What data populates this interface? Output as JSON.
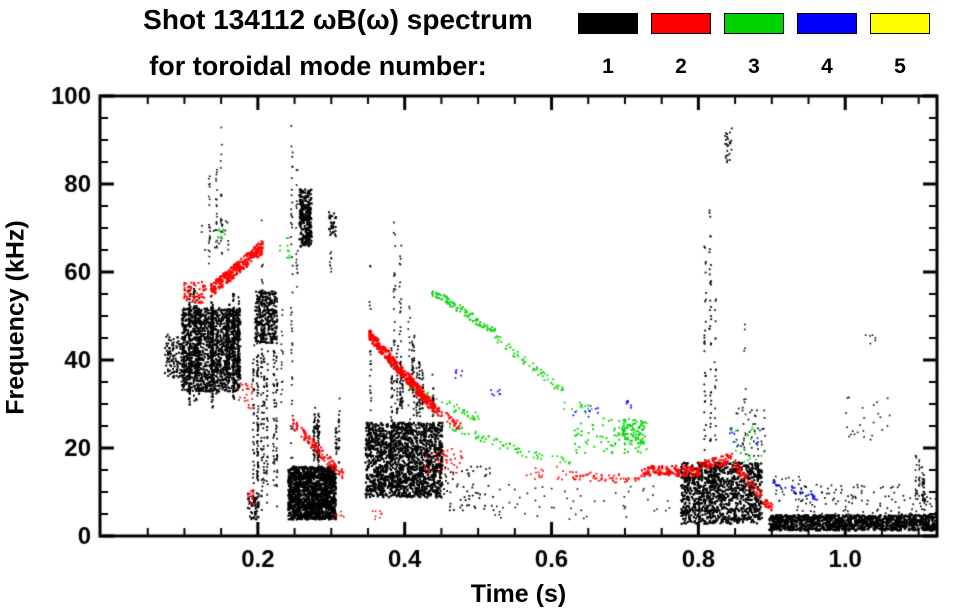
{
  "legend": {
    "modes": [
      {
        "label": "1",
        "color": "#000000"
      },
      {
        "label": "2",
        "color": "#ff0000"
      },
      {
        "label": "3",
        "color": "#00d400"
      },
      {
        "label": "4",
        "color": "#0000ff"
      },
      {
        "label": "5",
        "color": "#ffff00"
      }
    ]
  },
  "chart_data": {
    "type": "scatter",
    "title": "Shot 134112 ωB(ω) spectrum",
    "subtitle": "for toroidal mode number:",
    "xlabel": "Time (s)",
    "ylabel": "Frequency (kHz)",
    "xlim": [
      -0.015,
      1.125
    ],
    "ylim": [
      0,
      100
    ],
    "grid": false,
    "legend_position": "top-right",
    "x_major_ticks": [
      0.2,
      0.4,
      0.6,
      0.8,
      1.0
    ],
    "x_tick_labels": [
      "0.2",
      "0.4",
      "0.6",
      "0.8",
      "1.0"
    ],
    "x_minor_step": 0.05,
    "y_major_ticks": [
      0,
      20,
      40,
      60,
      80,
      100
    ],
    "y_tick_labels": [
      "0",
      "20",
      "40",
      "60",
      "80",
      "100"
    ],
    "y_minor_step": 5,
    "series": [
      {
        "mode": "1",
        "color": "#000000",
        "clusters": [
          {
            "type": "blob",
            "t": [
              0.072,
              0.1
            ],
            "f": [
              36,
              46
            ],
            "n": 120,
            "s": 2
          },
          {
            "type": "blob",
            "t": [
              0.095,
              0.175
            ],
            "f": [
              33,
              52
            ],
            "n": 1400,
            "s": 2
          },
          {
            "type": "vstreaks",
            "t": [
              0.1,
              0.175
            ],
            "fb": [
              28,
              36
            ],
            "ft": [
              50,
              58
            ],
            "k": 16,
            "n": 40,
            "s": 2
          },
          {
            "type": "vstreaks",
            "t": [
              0.125,
              0.155
            ],
            "fb": [
              60,
              66
            ],
            "ft": [
              80,
              97
            ],
            "k": 3,
            "n": 20,
            "s": 1.6
          },
          {
            "type": "blob",
            "t": [
              0.12,
              0.16
            ],
            "f": [
              65,
              72
            ],
            "n": 18,
            "s": 1.7
          },
          {
            "type": "blob",
            "t": [
              0.195,
              0.225
            ],
            "f": [
              44,
              56
            ],
            "n": 350,
            "s": 2
          },
          {
            "type": "vstreaks",
            "t": [
              0.19,
              0.225
            ],
            "fb": [
              5,
              12
            ],
            "ft": [
              40,
              56
            ],
            "k": 8,
            "n": 35,
            "s": 1.8
          },
          {
            "type": "streak",
            "t": 0.205,
            "f": [
              55,
              72
            ],
            "n": 14,
            "s": 1.6
          },
          {
            "type": "blob",
            "t": [
              0.185,
              0.2
            ],
            "f": [
              4,
              10
            ],
            "n": 60,
            "s": 2
          },
          {
            "type": "streak",
            "t": 0.232,
            "f": [
              30,
              52
            ],
            "n": 16,
            "s": 1.6
          },
          {
            "type": "streak",
            "t": 0.245,
            "f": [
              3,
              98
            ],
            "n": 55,
            "s": 1.7
          },
          {
            "type": "streak",
            "t": 0.252,
            "f": [
              55,
              88
            ],
            "n": 18,
            "s": 1.6
          },
          {
            "type": "blob",
            "t": [
              0.255,
              0.272
            ],
            "f": [
              66,
              79
            ],
            "n": 260,
            "s": 2.2
          },
          {
            "type": "blob",
            "t": [
              0.24,
              0.305
            ],
            "f": [
              4,
              16
            ],
            "n": 1500,
            "s": 2.2
          },
          {
            "type": "vstreaks",
            "t": [
              0.245,
              0.31
            ],
            "fb": [
              16,
              18
            ],
            "ft": [
              22,
              34
            ],
            "k": 7,
            "n": 18,
            "s": 1.8
          },
          {
            "type": "streak",
            "t": 0.298,
            "f": [
              60,
              73
            ],
            "n": 16,
            "s": 1.6
          },
          {
            "type": "blob",
            "t": [
              0.295,
              0.305
            ],
            "f": [
              68,
              74
            ],
            "n": 30,
            "s": 2
          },
          {
            "type": "blob",
            "t": [
              0.345,
              0.45
            ],
            "f": [
              9,
              26
            ],
            "n": 1600,
            "s": 2.2
          },
          {
            "type": "vstreaks",
            "t": [
              0.35,
              0.445
            ],
            "fb": [
              26,
              30
            ],
            "ft": [
              34,
              46
            ],
            "k": 10,
            "n": 22,
            "s": 1.8
          },
          {
            "type": "streak",
            "t": 0.352,
            "f": [
              25,
              62
            ],
            "n": 22,
            "s": 1.7
          },
          {
            "type": "streak",
            "t": 0.385,
            "f": [
              30,
              72
            ],
            "n": 26,
            "s": 1.7
          },
          {
            "type": "streak",
            "t": 0.393,
            "f": [
              30,
              68
            ],
            "n": 20,
            "s": 1.7
          },
          {
            "type": "streak",
            "t": 0.405,
            "f": [
              26,
              55
            ],
            "n": 16,
            "s": 1.6
          },
          {
            "type": "blob",
            "t": [
              0.45,
              0.52
            ],
            "f": [
              6,
              16
            ],
            "n": 60,
            "s": 1.8
          },
          {
            "type": "blob",
            "t": [
              0.52,
              0.62
            ],
            "f": [
              4,
              12
            ],
            "n": 25,
            "s": 1.6
          },
          {
            "type": "blob",
            "t": [
              0.62,
              0.76
            ],
            "f": [
              4,
              12
            ],
            "n": 30,
            "s": 1.6
          },
          {
            "type": "blob",
            "t": [
              0.775,
              0.885
            ],
            "f": [
              3,
              17
            ],
            "n": 1100,
            "s": 2.2
          },
          {
            "type": "streak",
            "t": 0.808,
            "f": [
              5,
              70
            ],
            "n": 40,
            "s": 1.8
          },
          {
            "type": "streak",
            "t": 0.815,
            "f": [
              5,
              77
            ],
            "n": 45,
            "s": 1.8
          },
          {
            "type": "streak",
            "t": 0.822,
            "f": [
              5,
              55
            ],
            "n": 25,
            "s": 1.7
          },
          {
            "type": "blob",
            "t": [
              0.835,
              0.845
            ],
            "f": [
              85,
              93
            ],
            "n": 25,
            "s": 1.8
          },
          {
            "type": "streak",
            "t": 0.862,
            "f": [
              18,
              50
            ],
            "n": 14,
            "s": 1.6
          },
          {
            "type": "blob",
            "t": [
              0.85,
              0.89
            ],
            "f": [
              18,
              30
            ],
            "n": 40,
            "s": 1.7
          },
          {
            "type": "band",
            "t": [
              0.895,
              1.145
            ],
            "f": [
              1.5,
              5
            ],
            "n": 1400,
            "s": 2.2
          },
          {
            "type": "blob",
            "t": [
              0.9,
              0.95
            ],
            "f": [
              8,
              14
            ],
            "n": 30,
            "s": 1.6
          },
          {
            "type": "blob",
            "t": [
              0.93,
              1.13
            ],
            "f": [
              5,
              12
            ],
            "n": 120,
            "s": 1.7
          },
          {
            "type": "vstreaks",
            "t": [
              1.06,
              1.11
            ],
            "fb": [
              5,
              8
            ],
            "ft": [
              12,
              20
            ],
            "k": 5,
            "n": 14,
            "s": 1.6
          },
          {
            "type": "blob",
            "t": [
              1.0,
              1.06
            ],
            "f": [
              22,
              32
            ],
            "n": 25,
            "s": 1.6
          },
          {
            "type": "blob",
            "t": [
              1.025,
              1.04
            ],
            "f": [
              43,
              47
            ],
            "n": 6,
            "s": 1.6
          }
        ]
      },
      {
        "mode": "2",
        "color": "#ff0000",
        "clusters": [
          {
            "type": "blob",
            "t": [
              0.098,
              0.128
            ],
            "f": [
              53,
              58
            ],
            "n": 60,
            "s": 2
          },
          {
            "type": "chirp",
            "t": [
              0.135,
              0.205
            ],
            "f": [
              56,
              66
            ],
            "jit": 1.5,
            "n": 260,
            "s": 2.2
          },
          {
            "type": "blob",
            "t": [
              0.17,
              0.195
            ],
            "f": [
              29,
              35
            ],
            "n": 25,
            "s": 1.8
          },
          {
            "type": "blob",
            "t": [
              0.185,
              0.195
            ],
            "f": [
              7,
              11
            ],
            "n": 15,
            "s": 1.8
          },
          {
            "type": "chirp",
            "t": [
              0.245,
              0.315
            ],
            "f": [
              26,
              14
            ],
            "jit": 1.2,
            "n": 120,
            "s": 2
          },
          {
            "type": "chirp",
            "t": [
              0.35,
              0.44
            ],
            "f": [
              46,
              29
            ],
            "jit": 1.3,
            "n": 300,
            "s": 2.4
          },
          {
            "type": "chirp",
            "t": [
              0.44,
              0.475
            ],
            "f": [
              29,
              25
            ],
            "jit": 1.0,
            "n": 40,
            "s": 2
          },
          {
            "type": "blob",
            "t": [
              0.425,
              0.48
            ],
            "f": [
              14,
              20
            ],
            "n": 45,
            "s": 1.8
          },
          {
            "type": "blob",
            "t": [
              0.3,
              0.32
            ],
            "f": [
              4,
              6
            ],
            "n": 8,
            "s": 1.6
          },
          {
            "type": "blob",
            "t": [
              0.355,
              0.37
            ],
            "f": [
              4,
              6
            ],
            "n": 8,
            "s": 1.6
          },
          {
            "type": "blob",
            "t": [
              0.56,
              0.62
            ],
            "f": [
              13,
              16
            ],
            "n": 18,
            "s": 1.7
          },
          {
            "type": "chirp",
            "t": [
              0.62,
              0.72
            ],
            "f": [
              14,
              13
            ],
            "jit": 1.0,
            "n": 60,
            "s": 1.8
          },
          {
            "type": "chirp",
            "t": [
              0.72,
              0.8
            ],
            "f": [
              15,
              15
            ],
            "jit": 1.2,
            "n": 140,
            "s": 2.2
          },
          {
            "type": "chirp",
            "t": [
              0.8,
              0.845
            ],
            "f": [
              16,
              18
            ],
            "jit": 1.2,
            "n": 80,
            "s": 2
          },
          {
            "type": "chirp",
            "t": [
              0.845,
              0.9
            ],
            "f": [
              17,
              6
            ],
            "jit": 1.2,
            "n": 90,
            "s": 2
          }
        ]
      },
      {
        "mode": "3",
        "color": "#00d400",
        "clusters": [
          {
            "type": "blob",
            "t": [
              0.143,
              0.155
            ],
            "f": [
              66,
              70
            ],
            "n": 10,
            "s": 1.8
          },
          {
            "type": "blob",
            "t": [
              0.228,
              0.242
            ],
            "f": [
              63,
              68
            ],
            "n": 10,
            "s": 1.8
          },
          {
            "type": "chirp",
            "t": [
              0.435,
              0.525
            ],
            "f": [
              56,
              46
            ],
            "jit": 1.0,
            "n": 90,
            "s": 2
          },
          {
            "type": "chirp",
            "t": [
              0.525,
              0.615
            ],
            "f": [
              45,
              33
            ],
            "jit": 1.0,
            "n": 55,
            "s": 1.8
          },
          {
            "type": "chirp",
            "t": [
              0.4,
              0.5
            ],
            "f": [
              34,
              27
            ],
            "jit": 1.0,
            "n": 45,
            "s": 1.8
          },
          {
            "type": "chirp",
            "t": [
              0.46,
              0.565
            ],
            "f": [
              25,
              19
            ],
            "jit": 1.0,
            "n": 50,
            "s": 1.8
          },
          {
            "type": "chirp",
            "t": [
              0.565,
              0.625
            ],
            "f": [
              19,
              17
            ],
            "jit": 0.8,
            "n": 20,
            "s": 1.7
          },
          {
            "type": "blob",
            "t": [
              0.615,
              0.655
            ],
            "f": [
              28,
              31
            ],
            "n": 14,
            "s": 1.7
          },
          {
            "type": "blob",
            "t": [
              0.63,
              0.73
            ],
            "f": [
              19,
              27
            ],
            "n": 90,
            "s": 1.9
          },
          {
            "type": "blob",
            "t": [
              0.695,
              0.725
            ],
            "f": [
              21,
              26
            ],
            "n": 60,
            "s": 2
          },
          {
            "type": "blob",
            "t": [
              0.84,
              0.89
            ],
            "f": [
              17,
              25
            ],
            "n": 25,
            "s": 1.7
          }
        ]
      },
      {
        "mode": "4",
        "color": "#0000ff",
        "clusters": [
          {
            "type": "blob",
            "t": [
              0.468,
              0.478
            ],
            "f": [
              36,
              38
            ],
            "n": 6,
            "s": 1.7
          },
          {
            "type": "blob",
            "t": [
              0.515,
              0.53
            ],
            "f": [
              32,
              34
            ],
            "n": 7,
            "s": 1.7
          },
          {
            "type": "blob",
            "t": [
              0.625,
              0.665
            ],
            "f": [
              27,
              30
            ],
            "n": 10,
            "s": 1.7
          },
          {
            "type": "blob",
            "t": [
              0.695,
              0.71
            ],
            "f": [
              29,
              31
            ],
            "n": 6,
            "s": 1.7
          },
          {
            "type": "blob",
            "t": [
              0.835,
              0.885
            ],
            "f": [
              20,
              25
            ],
            "n": 12,
            "s": 1.7
          },
          {
            "type": "chirp",
            "t": [
              0.9,
              0.965
            ],
            "f": [
              12,
              9
            ],
            "jit": 0.8,
            "n": 30,
            "s": 1.8
          }
        ]
      },
      {
        "mode": "5",
        "color": "#ffff00",
        "clusters": []
      }
    ]
  }
}
